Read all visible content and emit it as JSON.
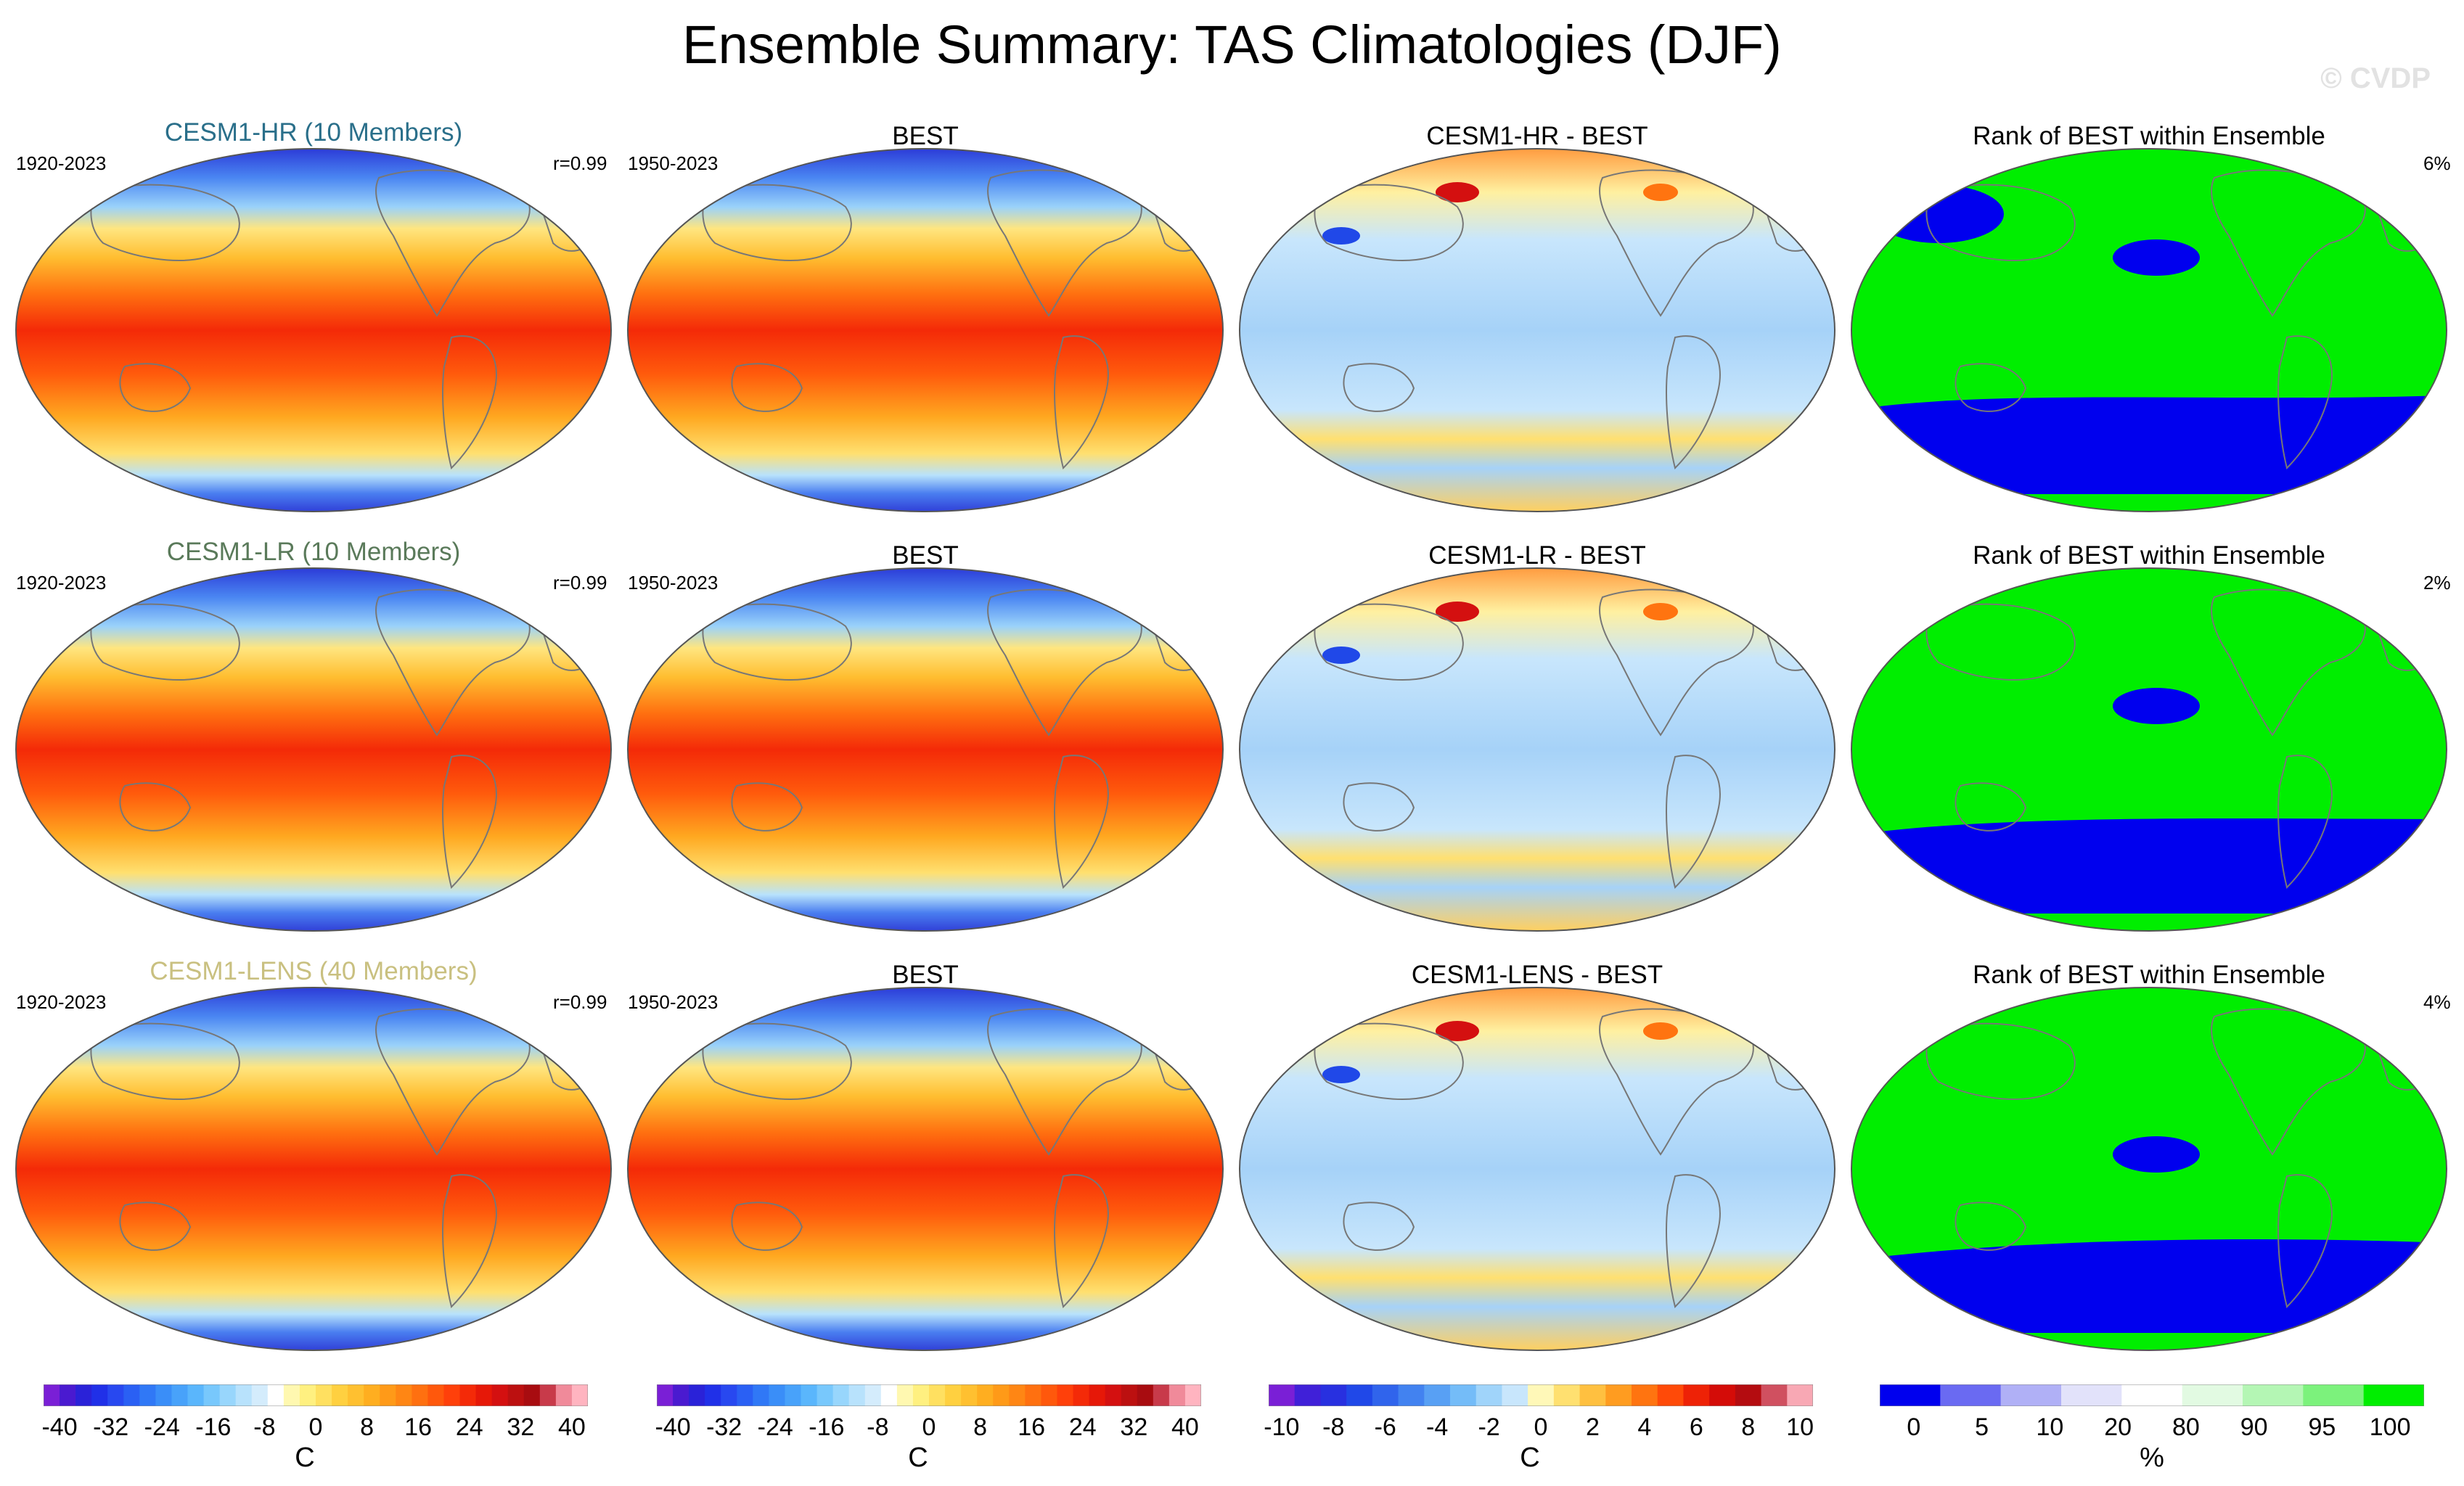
{
  "title": "Ensemble Summary: TAS Climatologies (DJF)",
  "watermark": "© CVDP",
  "colors": {
    "hr_title": "#2a6f8a",
    "lr_title": "#5a7a5a",
    "lens_title": "#c9c080",
    "rank_blue": "#0000ee",
    "rank_green": "#00ee00"
  },
  "rows": [
    {
      "model_title": "CESM1-HR (10 Members)",
      "model_period": "1920-2023",
      "pattern_corr": "r=0.99",
      "obs_title": "BEST",
      "obs_period": "1950-2023",
      "diff_title": "CESM1-HR - BEST",
      "rank_title": "Rank of BEST within Ensemble",
      "rank_pct": "6%"
    },
    {
      "model_title": "CESM1-LR (10 Members)",
      "model_period": "1920-2023",
      "pattern_corr": "r=0.99",
      "obs_title": "BEST",
      "obs_period": "1950-2023",
      "diff_title": "CESM1-LR - BEST",
      "rank_title": "Rank of BEST within Ensemble",
      "rank_pct": "2%"
    },
    {
      "model_title": "CESM1-LENS (40 Members)",
      "model_period": "1920-2023",
      "pattern_corr": "r=0.99",
      "obs_title": "BEST",
      "obs_period": "1950-2023",
      "diff_title": "CESM1-LENS - BEST",
      "rank_title": "Rank of BEST within Ensemble",
      "rank_pct": "4%"
    }
  ],
  "chart_data": [
    {
      "type": "heatmap",
      "name": "climatology-colorbar",
      "unit": "C",
      "range": [
        -40,
        40
      ],
      "ticks": [
        "-40",
        "-32",
        "-24",
        "-16",
        "-8",
        "0",
        "8",
        "16",
        "24",
        "32",
        "40"
      ],
      "colors": [
        "#7a1fd6",
        "#4a1ad0",
        "#2a22d8",
        "#2030e8",
        "#2848f0",
        "#2a60f4",
        "#3078f6",
        "#3a8ef8",
        "#48a2fa",
        "#5ab6fc",
        "#78c8fc",
        "#98d6fc",
        "#b8e2fc",
        "#d4ecfc",
        "#ffffff",
        "#fff8b0",
        "#fff080",
        "#ffe060",
        "#ffd040",
        "#ffc030",
        "#ffae20",
        "#ff9a18",
        "#ff8614",
        "#ff7010",
        "#ff580c",
        "#ff400a",
        "#f42a08",
        "#e61808",
        "#d41010",
        "#bc1010",
        "#a80c10",
        "#c83a4a",
        "#f08a9a",
        "#ffb4c0"
      ]
    },
    {
      "type": "heatmap",
      "name": "difference-colorbar",
      "unit": "C",
      "range": [
        -10,
        10
      ],
      "ticks": [
        "-10",
        "-8",
        "-6",
        "-4",
        "-2",
        "0",
        "2",
        "4",
        "6",
        "8",
        "10"
      ],
      "colors": [
        "#7a1fd6",
        "#4020d8",
        "#2830e0",
        "#2048e8",
        "#3064ec",
        "#4282f0",
        "#58a0f4",
        "#74bcf8",
        "#a0d4fa",
        "#c8e6fc",
        "#fff8b8",
        "#ffe070",
        "#ffc040",
        "#ff9c20",
        "#ff7410",
        "#ff4a08",
        "#ee2206",
        "#d40c08",
        "#b40c10",
        "#d05060",
        "#f8a8b4"
      ]
    },
    {
      "type": "heatmap",
      "name": "rank-colorbar",
      "unit": "%",
      "range": [
        0,
        100
      ],
      "ticks": [
        "0",
        "5",
        "10",
        "20",
        "80",
        "90",
        "95",
        "100"
      ],
      "colors": [
        "#0000ee",
        "#6a6af2",
        "#b0b0f6",
        "#e2e2fa",
        "#ffffff",
        "#e2fae2",
        "#b4f6b4",
        "#7cf27c",
        "#00ee00"
      ]
    }
  ]
}
